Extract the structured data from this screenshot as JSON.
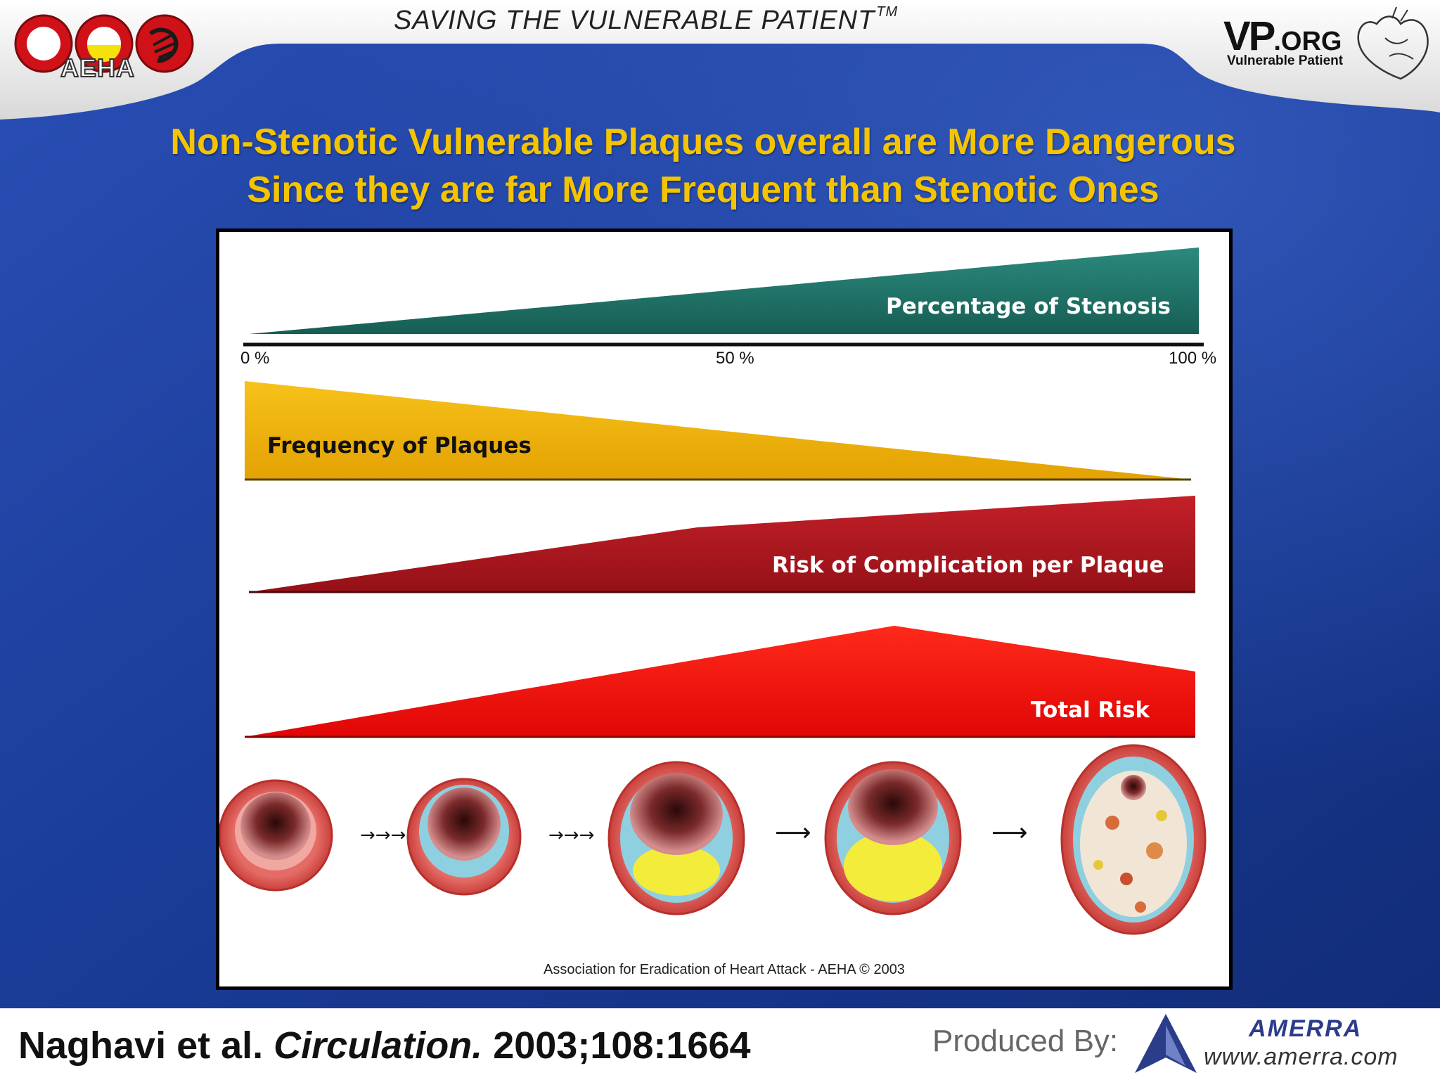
{
  "header": {
    "title": "SAVING THE VULNERABLE PATIENT",
    "trademark": "TM",
    "left_logo_text": "AEHA",
    "right_logo_main": "VP",
    "right_logo_suffix": ".ORG",
    "right_logo_sub": "Vulnerable Patient"
  },
  "slide_title": {
    "line1": "Non-Stenotic Vulnerable Plaques overall are More Dangerous",
    "line2": "Since they are far More Frequent than Stenotic Ones"
  },
  "figure": {
    "axis_ticks": [
      "0 %",
      "50 %",
      "100 %"
    ],
    "bands": [
      {
        "label": "Percentage of Stenosis",
        "color": "#217a6e"
      },
      {
        "label": "Frequency of Plaques",
        "color": "#f1b20a"
      },
      {
        "label": "Risk of Complication per Plaque",
        "color": "#b4161f"
      },
      {
        "label": "Total Risk",
        "color": "#ee1010"
      }
    ],
    "credit": "Association for Eradication of Heart Attack - AEHA © 2003",
    "artery_stage_icons": [
      "artery-normal-icon",
      "artery-early-plaque-icon",
      "artery-lipid-core-icon",
      "artery-inflamed-plaque-icon",
      "artery-occluded-icon"
    ]
  },
  "footer": {
    "authors": "Naghavi et al.",
    "journal": "Circulation.",
    "ref": "2003;108:1664",
    "produced_by": "Produced By:",
    "producer_name": "AMERRA",
    "producer_url": "www.amerra.com"
  },
  "colors": {
    "background": "#1d3f9a",
    "title": "#f5c400"
  }
}
